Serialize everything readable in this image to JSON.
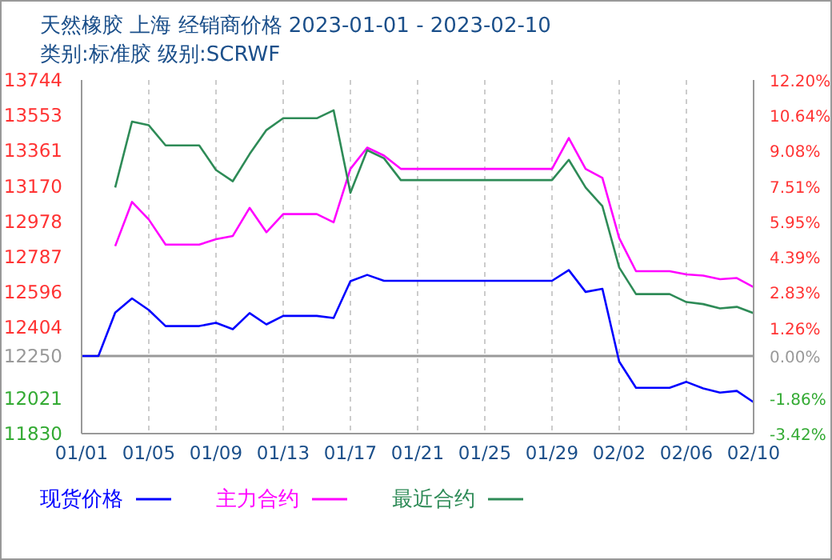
{
  "chart_data": {
    "type": "line",
    "title": "天然橡胶 上海 经销商价格 2023-01-01 - 2023-02-10",
    "subtitle": "类别:标准胶 级别:SCRWF",
    "x": [
      "2023-01-01",
      "2023-01-02",
      "2023-01-03",
      "2023-01-04",
      "2023-01-05",
      "2023-01-06",
      "2023-01-07",
      "2023-01-08",
      "2023-01-09",
      "2023-01-10",
      "2023-01-11",
      "2023-01-12",
      "2023-01-13",
      "2023-01-14",
      "2023-01-15",
      "2023-01-16",
      "2023-01-17",
      "2023-01-18",
      "2023-01-19",
      "2023-01-20",
      "2023-01-21",
      "2023-01-22",
      "2023-01-23",
      "2023-01-24",
      "2023-01-25",
      "2023-01-26",
      "2023-01-27",
      "2023-01-28",
      "2023-01-29",
      "2023-01-30",
      "2023-01-31",
      "2023-02-01",
      "2023-02-02",
      "2023-02-03",
      "2023-02-04",
      "2023-02-05",
      "2023-02-06",
      "2023-02-07",
      "2023-02-08",
      "2023-02-09",
      "2023-02-10"
    ],
    "series": [
      {
        "name": "现货价格",
        "color": "#0000ff",
        "values": [
          12250,
          12250,
          12485,
          12562,
          12499,
          12412,
          12412,
          12412,
          12430,
          12395,
          12482,
          12421,
          12467,
          12467,
          12467,
          12456,
          12655,
          12689,
          12657,
          12657,
          12657,
          12657,
          12657,
          12657,
          12657,
          12657,
          12657,
          12657,
          12657,
          12715,
          12597,
          12614,
          12220,
          12078,
          12078,
          12078,
          12110,
          12075,
          12052,
          12061,
          12000
        ]
      },
      {
        "name": "主力合约",
        "color": "#ff00ff",
        "values": [
          null,
          null,
          12845,
          13084,
          12989,
          12853,
          12853,
          12853,
          12882,
          12900,
          13052,
          12920,
          13018,
          13018,
          13018,
          12974,
          13263,
          13378,
          13335,
          13263,
          13263,
          13263,
          13263,
          13263,
          13263,
          13263,
          13263,
          13263,
          13263,
          13430,
          13263,
          13214,
          12888,
          12709,
          12709,
          12709,
          12692,
          12685,
          12666,
          12672,
          12623
        ]
      },
      {
        "name": "最近合约",
        "color": "#2e8b57",
        "values": [
          null,
          null,
          13162,
          13519,
          13499,
          13390,
          13390,
          13390,
          13257,
          13196,
          13343,
          13473,
          13537,
          13537,
          13537,
          13580,
          13133,
          13364,
          13320,
          13202,
          13202,
          13202,
          13202,
          13202,
          13202,
          13202,
          13202,
          13202,
          13202,
          13312,
          13162,
          13061,
          12729,
          12585,
          12585,
          12585,
          12542,
          12531,
          12508,
          12516,
          12482
        ]
      }
    ],
    "xlim": [
      "2023-01-01",
      "2023-02-10"
    ],
    "xticks": [
      {
        "value": "2023-01-01",
        "label": "01/01"
      },
      {
        "value": "2023-01-05",
        "label": "01/05"
      },
      {
        "value": "2023-01-09",
        "label": "01/09"
      },
      {
        "value": "2023-01-13",
        "label": "01/13"
      },
      {
        "value": "2023-01-17",
        "label": "01/17"
      },
      {
        "value": "2023-01-21",
        "label": "01/21"
      },
      {
        "value": "2023-01-25",
        "label": "01/25"
      },
      {
        "value": "2023-01-29",
        "label": "01/29"
      },
      {
        "value": "2023-02-02",
        "label": "02/02"
      },
      {
        "value": "2023-02-06",
        "label": "02/06"
      },
      {
        "value": "2023-02-10",
        "label": "02/10"
      }
    ],
    "ylim": [
      11830,
      13744
    ],
    "yticks": [
      11830,
      12021,
      12250,
      12404,
      12596,
      12787,
      12978,
      13170,
      13361,
      13553,
      13744
    ],
    "y2lim": [
      -3.42,
      12.2
    ],
    "y2ticks": [
      {
        "value": -3.42,
        "label": "-3.42%"
      },
      {
        "value": -1.86,
        "label": "-1.86%"
      },
      {
        "value": 0,
        "label": "0.00%"
      },
      {
        "value": 1.26,
        "label": "1.26%"
      },
      {
        "value": 2.83,
        "label": "2.83%"
      },
      {
        "value": 4.39,
        "label": "4.39%"
      },
      {
        "value": 5.95,
        "label": "5.95%"
      },
      {
        "value": 7.51,
        "label": "7.51%"
      },
      {
        "value": 9.08,
        "label": "9.08%"
      },
      {
        "value": 10.64,
        "label": "10.64%"
      },
      {
        "value": 12.2,
        "label": "12.20%"
      }
    ],
    "ref_lines": [
      {
        "axis": "y",
        "value": 12250,
        "color": "#999999",
        "line_style": "solid"
      }
    ],
    "grid": true,
    "legend": "bottom",
    "marker": "none",
    "line_style": "solid"
  }
}
